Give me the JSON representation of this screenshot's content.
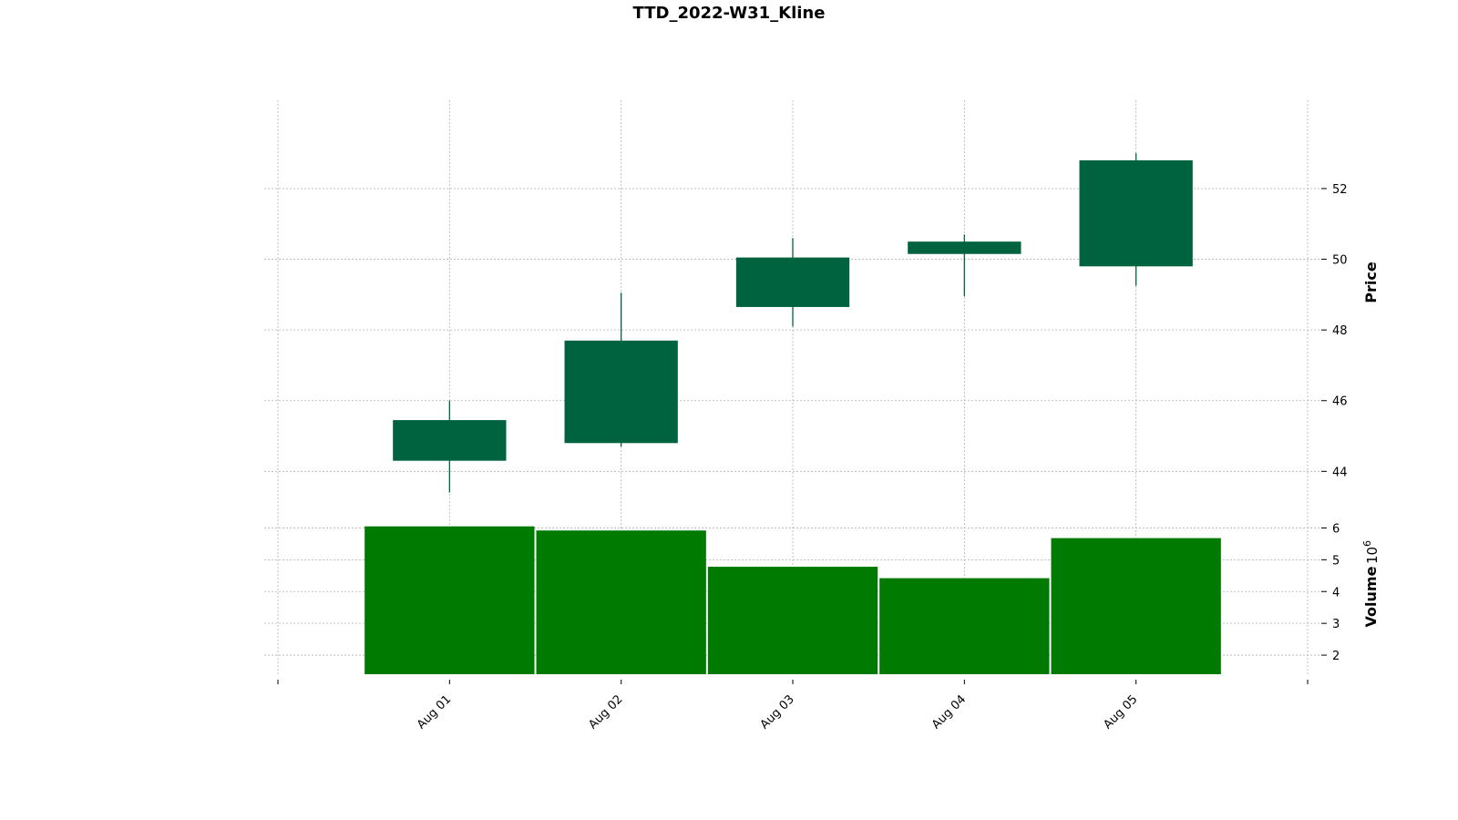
{
  "chart_data": {
    "type": "candlestick",
    "title": "TTD_2022-W31_Kline",
    "categories": [
      "Aug 01",
      "Aug 02",
      "Aug 03",
      "Aug 04",
      "Aug 05"
    ],
    "ohlc": [
      {
        "open": 44.3,
        "high": 46.0,
        "low": 43.4,
        "close": 45.45
      },
      {
        "open": 44.8,
        "high": 49.05,
        "low": 44.7,
        "close": 47.7
      },
      {
        "open": 48.65,
        "high": 50.6,
        "low": 48.1,
        "close": 50.05
      },
      {
        "open": 50.15,
        "high": 50.7,
        "low": 48.95,
        "close": 50.5
      },
      {
        "open": 49.8,
        "high": 53.0,
        "low": 49.25,
        "close": 52.8
      }
    ],
    "volume": [
      6.05,
      5.92,
      4.78,
      4.42,
      5.68
    ],
    "volume_multiplier_label": "10",
    "volume_multiplier_exp": "6",
    "price_axis": {
      "label": "Price",
      "ticks": [
        44,
        46,
        48,
        50,
        52
      ],
      "ylim": [
        42.9,
        54.5
      ]
    },
    "volume_axis": {
      "label": "Volume",
      "ticks": [
        2,
        3,
        4,
        5,
        6
      ],
      "ylim": [
        1.4,
        6.5
      ]
    },
    "grid": true,
    "colors": {
      "candle": "#006340",
      "volume": "#007a00",
      "grid": "#b0b0b0"
    }
  }
}
